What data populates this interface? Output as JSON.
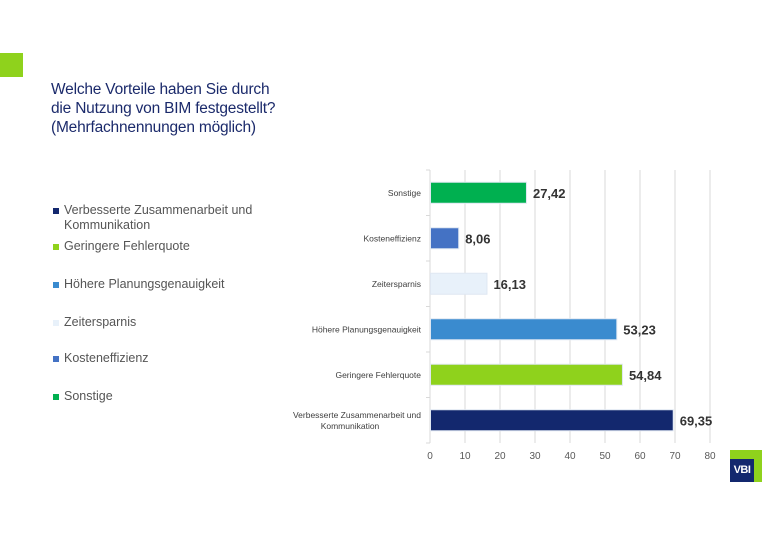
{
  "header": {
    "title_lines": [
      "Welche Vorteile haben Sie durch",
      "die Nutzung von BIM festgestellt?",
      "(Mehrfachnennungen möglich)"
    ]
  },
  "legend": {
    "items": [
      {
        "label_lines": [
          "Verbesserte Zusammenarbeit und",
          "Kommunikation"
        ],
        "color": "#13286e"
      },
      {
        "label_lines": [
          "Geringere Fehlerquote"
        ],
        "color": "#8fd21c"
      },
      {
        "label_lines": [
          "Höhere Planungsgenauigkeit"
        ],
        "color": "#3a8bcf"
      },
      {
        "label_lines": [
          "Zeitersparnis"
        ],
        "color": "#e8f1fa"
      },
      {
        "label_lines": [
          "Kosteneffizienz"
        ],
        "color": "#4472c4"
      },
      {
        "label_lines": [
          "Sonstige"
        ],
        "color": "#00b050"
      }
    ]
  },
  "logo": {
    "text": "VBI"
  },
  "chart_data": {
    "type": "bar",
    "orientation": "horizontal",
    "title": "Welche Vorteile haben Sie durch die Nutzung von BIM festgestellt? (Mehrfachnennungen möglich)",
    "xlabel": "",
    "ylabel": "",
    "categories": [
      [
        "Sonstige"
      ],
      [
        "Kosteneffizienz"
      ],
      [
        "Zeitersparnis"
      ],
      [
        "Höhere Planungsgenauigkeit"
      ],
      [
        "Geringere Fehlerquote"
      ],
      [
        "Verbesserte Zusammenarbeit und",
        "Kommunikation"
      ]
    ],
    "values": [
      27.42,
      8.06,
      16.13,
      53.23,
      54.84,
      69.35
    ],
    "value_labels": [
      "27,42",
      "8,06",
      "16,13",
      "53,23",
      "54,84",
      "69,35"
    ],
    "colors": [
      "#00b050",
      "#4472c4",
      "#e8f1fa",
      "#3a8bcf",
      "#8fd21c",
      "#13286e"
    ],
    "xlim": [
      0,
      80
    ],
    "xticks": [
      0,
      10,
      20,
      30,
      40,
      50,
      60,
      70,
      80
    ],
    "grid": true,
    "legend_position": "left"
  }
}
